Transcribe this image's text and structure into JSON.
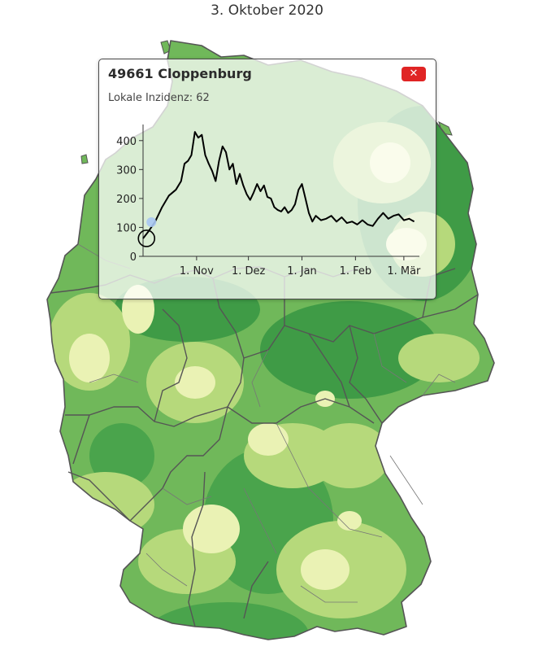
{
  "page": {
    "date_title": "3. Oktober 2020"
  },
  "popup": {
    "title": "49661 Cloppenburg",
    "incidence_label": "Lokale Inzidenz:",
    "incidence_value": "62",
    "close_icon": "close-icon"
  },
  "colors": {
    "map_base": "#70b85a",
    "map_dark": "#3f9b46",
    "map_light": "#b6d97b",
    "map_pale": "#eaf2b4",
    "border": "#555555",
    "close_button": "#e02424",
    "line": "#000000",
    "marker_fill": "#a9c7f3"
  },
  "chart_data": {
    "type": "line",
    "title": "",
    "xlabel": "",
    "ylabel": "",
    "x_tick_labels": [
      "1. Nov",
      "1. Dez",
      "1. Jan",
      "1. Feb",
      "1. Mär"
    ],
    "y_tick_labels": [
      "0",
      "100",
      "200",
      "300",
      "400"
    ],
    "ylim": [
      0,
      450
    ],
    "xlim": [
      "2020-10-01",
      "2021-03-10"
    ],
    "grid": false,
    "legend": "none",
    "current_marker": {
      "x": "2020-10-03",
      "y": 62
    },
    "series": [
      {
        "x": [
          "2020-10-01",
          "2020-10-04",
          "2020-10-08",
          "2020-10-12",
          "2020-10-16",
          "2020-10-20",
          "2020-10-23",
          "2020-10-25",
          "2020-10-27",
          "2020-10-29",
          "2020-10-31",
          "2020-11-02",
          "2020-11-04",
          "2020-11-06",
          "2020-11-08",
          "2020-11-10",
          "2020-11-12",
          "2020-11-14",
          "2020-11-16",
          "2020-11-18",
          "2020-11-20",
          "2020-11-22",
          "2020-11-24",
          "2020-11-26",
          "2020-11-28",
          "2020-11-30",
          "2020-12-02",
          "2020-12-04",
          "2020-12-06",
          "2020-12-08",
          "2020-12-10",
          "2020-12-12",
          "2020-12-14",
          "2020-12-16",
          "2020-12-18",
          "2020-12-20",
          "2020-12-22",
          "2020-12-24",
          "2020-12-26",
          "2020-12-28",
          "2020-12-30",
          "2021-01-01",
          "2021-01-03",
          "2021-01-05",
          "2021-01-07",
          "2021-01-09",
          "2021-01-12",
          "2021-01-15",
          "2021-01-18",
          "2021-01-21",
          "2021-01-24",
          "2021-01-27",
          "2021-01-30",
          "2021-02-02",
          "2021-02-05",
          "2021-02-08",
          "2021-02-11",
          "2021-02-14",
          "2021-02-17",
          "2021-02-20",
          "2021-02-23",
          "2021-02-26",
          "2021-03-01",
          "2021-03-04",
          "2021-03-07"
        ],
        "y": [
          62,
          85,
          120,
          170,
          210,
          230,
          260,
          320,
          330,
          350,
          430,
          410,
          420,
          350,
          320,
          295,
          260,
          330,
          380,
          360,
          300,
          320,
          250,
          285,
          245,
          215,
          195,
          220,
          250,
          225,
          245,
          205,
          200,
          170,
          160,
          155,
          170,
          150,
          160,
          180,
          230,
          250,
          200,
          150,
          120,
          140,
          125,
          130,
          140,
          120,
          135,
          115,
          120,
          110,
          125,
          110,
          105,
          130,
          150,
          130,
          140,
          145,
          125,
          130,
          120
        ]
      }
    ]
  }
}
